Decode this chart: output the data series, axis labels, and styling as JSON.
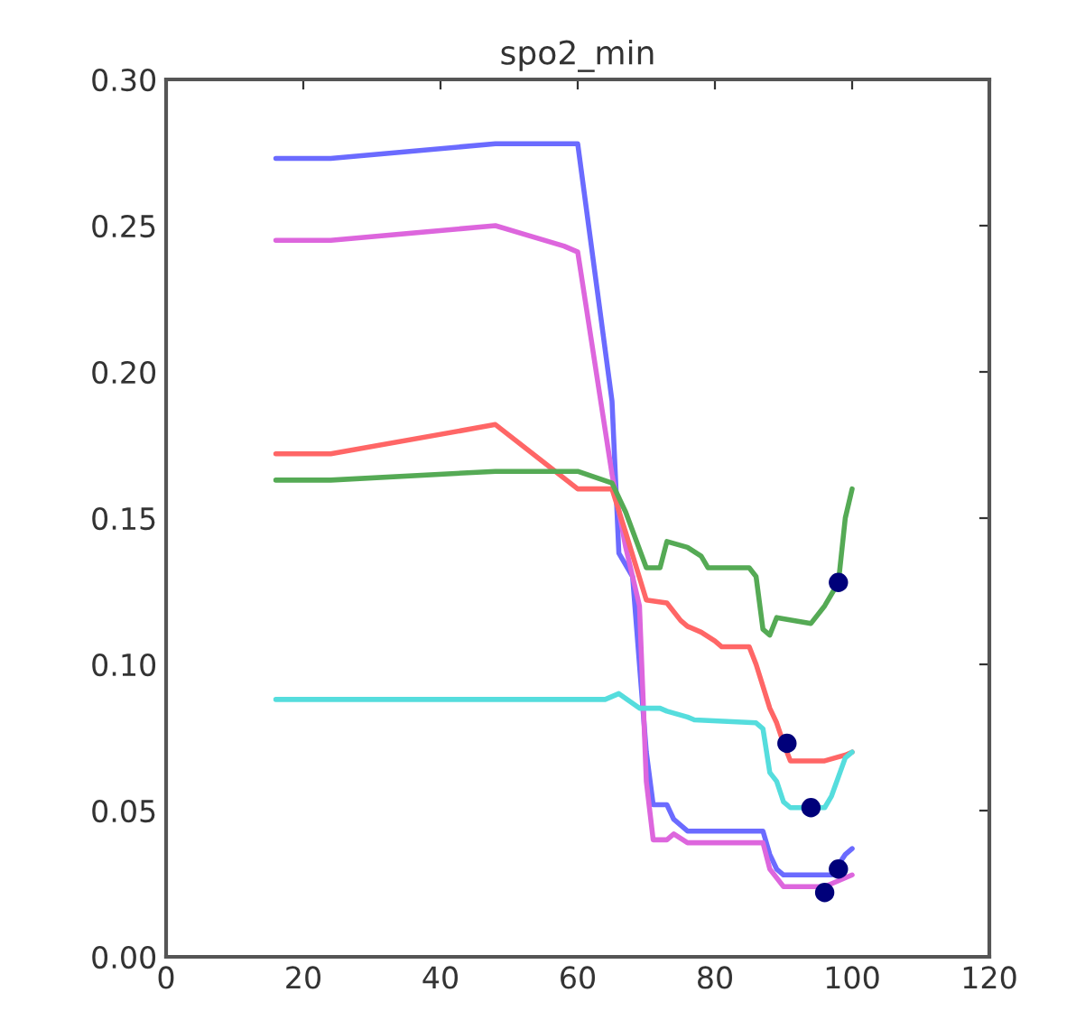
{
  "chart_data": {
    "type": "line",
    "title": "spo2_min",
    "xlim": [
      0,
      120
    ],
    "xticks": [
      0,
      20,
      40,
      60,
      80,
      100,
      120
    ],
    "ylim": [
      0,
      0.3
    ],
    "yticks": [
      {
        "value": 0,
        "label": "0.00"
      },
      {
        "value": 0.05,
        "label": "0.05"
      },
      {
        "value": 0.1,
        "label": "0.10"
      },
      {
        "value": 0.15,
        "label": "0.15"
      },
      {
        "value": 0.2,
        "label": "0.20"
      },
      {
        "value": 0.25,
        "label": "0.25"
      },
      {
        "value": 0.3,
        "label": "0.30"
      }
    ],
    "grid": false,
    "legend": false,
    "line_style": "solid",
    "series": [
      {
        "color": "#6b6bff",
        "x": [
          16,
          24,
          48,
          60,
          65,
          66,
          68,
          70,
          71,
          73,
          74,
          76,
          87,
          88,
          89,
          90,
          97,
          99,
          100
        ],
        "values": [
          0.273,
          0.273,
          0.278,
          0.278,
          0.19,
          0.138,
          0.13,
          0.07,
          0.052,
          0.052,
          0.047,
          0.043,
          0.043,
          0.035,
          0.03,
          0.028,
          0.028,
          0.035,
          0.037
        ]
      },
      {
        "color": "#dd66dd",
        "x": [
          16,
          24,
          48,
          58,
          60,
          65,
          67,
          69,
          70,
          71,
          73,
          74,
          76,
          87,
          88,
          90,
          96,
          98,
          100
        ],
        "values": [
          0.245,
          0.245,
          0.25,
          0.243,
          0.241,
          0.165,
          0.14,
          0.12,
          0.06,
          0.04,
          0.04,
          0.042,
          0.039,
          0.039,
          0.03,
          0.024,
          0.024,
          0.026,
          0.028
        ]
      },
      {
        "color": "#ff6666",
        "x": [
          16,
          24,
          48,
          60,
          65,
          67,
          70,
          73,
          75,
          76,
          78,
          80,
          81,
          85,
          86,
          88,
          89,
          90,
          91,
          96,
          99,
          100
        ],
        "values": [
          0.172,
          0.172,
          0.182,
          0.16,
          0.16,
          0.145,
          0.122,
          0.121,
          0.115,
          0.113,
          0.111,
          0.108,
          0.106,
          0.106,
          0.1,
          0.085,
          0.08,
          0.073,
          0.067,
          0.067,
          0.069,
          0.07
        ]
      },
      {
        "color": "#55aa55",
        "x": [
          16,
          24,
          48,
          60,
          65,
          67,
          70,
          72,
          73,
          76,
          78,
          79,
          85,
          86,
          87,
          88,
          89,
          94,
          96,
          98,
          99,
          100
        ],
        "values": [
          0.163,
          0.163,
          0.166,
          0.166,
          0.162,
          0.152,
          0.133,
          0.133,
          0.142,
          0.14,
          0.137,
          0.133,
          0.133,
          0.13,
          0.112,
          0.11,
          0.116,
          0.114,
          0.12,
          0.128,
          0.15,
          0.16
        ]
      },
      {
        "color": "#55dddd",
        "x": [
          16,
          64,
          66,
          69,
          72,
          73,
          76,
          77,
          86,
          87,
          88,
          89,
          90,
          91,
          96,
          97,
          99,
          100
        ],
        "values": [
          0.088,
          0.088,
          0.09,
          0.085,
          0.085,
          0.084,
          0.082,
          0.081,
          0.08,
          0.078,
          0.063,
          0.06,
          0.053,
          0.051,
          0.051,
          0.055,
          0.068,
          0.07
        ]
      },
      {
        "type": "scatter",
        "marker": "circle",
        "color": "#00007a",
        "x": [
          98,
          90.5,
          94,
          98,
          96
        ],
        "values": [
          0.128,
          0.073,
          0.051,
          0.03,
          0.022
        ]
      }
    ]
  }
}
